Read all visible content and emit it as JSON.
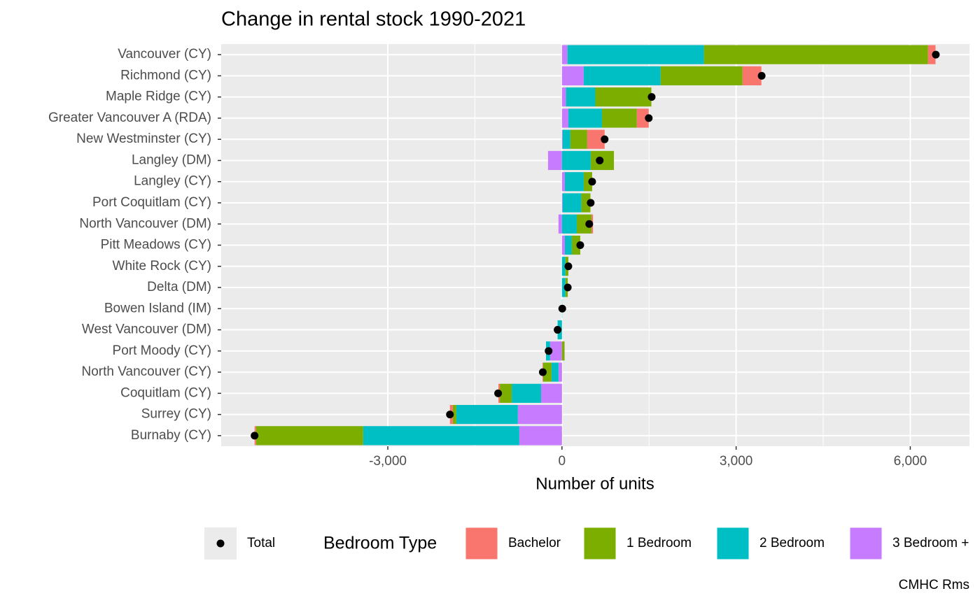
{
  "chart_data": {
    "type": "stacked-bar-horizontal",
    "title": "Change in rental stock 1990-2021",
    "x_label": "Number of units",
    "caption": "CMHC Rms",
    "legend_title": "Bedroom Type",
    "categories": [
      "Vancouver (CY)",
      "Richmond (CY)",
      "Maple Ridge (CY)",
      "Greater Vancouver A (RDA)",
      "New Westminster (CY)",
      "Langley (DM)",
      "Langley (CY)",
      "Port Coquitlam (CY)",
      "North Vancouver (DM)",
      "Pitt Meadows (CY)",
      "White Rock (CY)",
      "Delta (DM)",
      "Bowen Island (IM)",
      "West Vancouver (DM)",
      "Port Moody (CY)",
      "North Vancouver (CY)",
      "Coquitlam (CY)",
      "Surrey (CY)",
      "Burnaby (CY)"
    ],
    "series": [
      {
        "name": "Bachelor",
        "color": "#f8766d",
        "values": [
          130,
          325,
          0,
          205,
          300,
          0,
          0,
          0,
          25,
          0,
          0,
          0,
          0,
          0,
          0,
          -10,
          -25,
          -50,
          -25
        ]
      },
      {
        "name": "1 Bedroom",
        "color": "#7cae00",
        "values": [
          3860,
          1410,
          965,
          600,
          290,
          400,
          145,
          155,
          255,
          145,
          50,
          40,
          0,
          0,
          45,
          -145,
          -205,
          -60,
          -1845
        ]
      },
      {
        "name": "2 Bedroom",
        "color": "#00bfc4",
        "values": [
          2350,
          1325,
          505,
          580,
          135,
          495,
          325,
          325,
          255,
          120,
          60,
          60,
          5,
          -75,
          -70,
          -120,
          -505,
          -1060,
          -2690
        ]
      },
      {
        "name": "3 Bedroom +",
        "color": "#c77cff",
        "values": [
          95,
          375,
          70,
          110,
          10,
          -240,
          50,
          10,
          -60,
          50,
          0,
          0,
          0,
          0,
          -205,
          -60,
          -360,
          -760,
          -735
        ]
      }
    ],
    "points": {
      "name": "Total",
      "color": "#000000",
      "values": [
        6440,
        3440,
        1545,
        1495,
        735,
        650,
        520,
        495,
        470,
        315,
        110,
        100,
        5,
        -75,
        -230,
        -330,
        -1100,
        -1930,
        -5295
      ]
    },
    "xlim": [
      -5870,
      7020
    ],
    "xticks": [
      {
        "value": -3000,
        "label": "-3,000"
      },
      0,
      {
        "value": 3000,
        "label": "3,000"
      },
      {
        "value": 6000,
        "label": "6,000"
      }
    ],
    "grid": true
  }
}
